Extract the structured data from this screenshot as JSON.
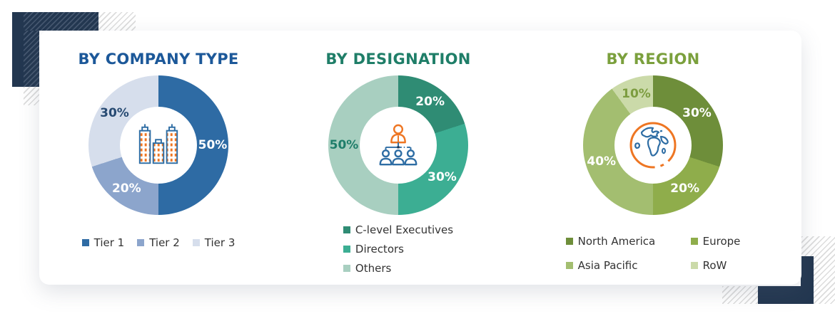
{
  "page": {
    "accent_navy": "#233750",
    "legend_text_color": "#333333",
    "icon_orange": "#EE7623",
    "icon_blue": "#2E6DA4"
  },
  "chart_data": [
    {
      "type": "donut",
      "title": "BY COMPANY TYPE",
      "title_color": "#1C5899",
      "icon": "buildings-icon",
      "categories": [
        "Tier 1",
        "Tier 2",
        "Tier 3"
      ],
      "values": [
        50,
        20,
        30
      ],
      "colors": [
        "#2E6BA4",
        "#8CA5CC",
        "#D6DEEC"
      ],
      "labels": [
        "50%",
        "20%",
        "30%"
      ],
      "label_colors": [
        "#FFFFFF",
        "#FFFFFF",
        "#274A72"
      ],
      "legend_layout": "row",
      "legend_position": "bottom"
    },
    {
      "type": "donut",
      "title": "BY DESIGNATION",
      "title_color": "#1F7E68",
      "icon": "org-chart-icon",
      "categories": [
        "C-level Executives",
        "Directors",
        "Others"
      ],
      "values": [
        20,
        30,
        50
      ],
      "colors": [
        "#2F8C74",
        "#3CAE93",
        "#A8CFC0"
      ],
      "labels": [
        "20%",
        "30%",
        "50%"
      ],
      "label_colors": [
        "#FFFFFF",
        "#FFFFFF",
        "#1F7E6A"
      ],
      "legend_layout": "column",
      "legend_position": "bottom"
    },
    {
      "type": "donut",
      "title": "BY REGION",
      "title_color": "#7BA03D",
      "icon": "globe-icon",
      "categories": [
        "North America",
        "Europe",
        "Asia Pacific",
        "RoW"
      ],
      "values": [
        30,
        20,
        40,
        10
      ],
      "colors": [
        "#6E8E3A",
        "#8FAD4B",
        "#A3BE70",
        "#CBDAA9"
      ],
      "labels": [
        "30%",
        "20%",
        "40%",
        "10%"
      ],
      "label_colors": [
        "#FFFFFF",
        "#FFFFFF",
        "#FFFFFF",
        "#7C9C3F"
      ],
      "legend_layout": "grid",
      "legend_position": "bottom"
    }
  ]
}
